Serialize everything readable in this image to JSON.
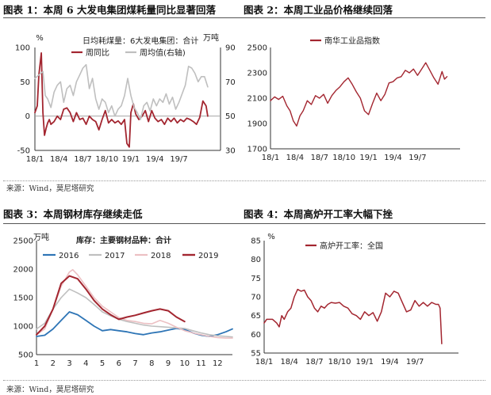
{
  "colors": {
    "maroon": "#a32630",
    "gray": "#bfbfbf",
    "blue": "#2e75b6",
    "axis": "#333333",
    "pink": "#ecc0c3"
  },
  "source_top": "来源：Wind，莫尼塔研究",
  "source_bottom": "来源：Wind，莫尼塔研究",
  "chart_data": [
    {
      "id": "c1",
      "title": "图表 1：本周 6 大发电集团煤耗量同比显著回落",
      "type": "line",
      "legend_title": "日均耗煤量：6大发电集团：合计",
      "left_unit": "%",
      "right_unit": "万吨",
      "ylim_left": [
        -50,
        100
      ],
      "yticks_left": [
        "100",
        "50",
        "0",
        "-50"
      ],
      "ylim_right": [
        30,
        90
      ],
      "yticks_right": [
        "90",
        "70",
        "50",
        "30"
      ],
      "xlim": [
        0,
        23.2
      ],
      "xticks": [
        {
          "pos": 0,
          "label": "18/1"
        },
        {
          "pos": 3,
          "label": "18/4"
        },
        {
          "pos": 6,
          "label": "18/7"
        },
        {
          "pos": 9,
          "label": "18/10"
        },
        {
          "pos": 12,
          "label": "19/1"
        },
        {
          "pos": 15,
          "label": "19/4"
        },
        {
          "pos": 18,
          "label": "19/7"
        }
      ],
      "series": [
        {
          "name": "周同比",
          "axis": "left",
          "color": "maroon",
          "width": 1.8,
          "x": [
            0,
            0.3,
            0.5,
            0.8,
            1.0,
            1.2,
            1.4,
            1.6,
            1.8,
            2.0,
            2.4,
            2.8,
            3.2,
            3.6,
            4.0,
            4.4,
            4.8,
            5.2,
            5.6,
            6.0,
            6.4,
            6.8,
            7.2,
            7.6,
            8.0,
            8.4,
            8.8,
            9.2,
            9.6,
            10.0,
            10.4,
            10.8,
            11.2,
            11.5,
            11.8,
            12.0,
            12.3,
            12.6,
            13.0,
            13.4,
            13.8,
            14.2,
            14.6,
            15.0,
            15.4,
            15.8,
            16.2,
            16.6,
            17.0,
            17.4,
            17.8,
            18.2,
            18.6,
            19.0,
            19.4,
            19.8,
            20.2,
            20.6,
            21.0,
            21.4,
            21.6
          ],
          "y": [
            5,
            15,
            60,
            92,
            5,
            -28,
            -18,
            -10,
            -5,
            -12,
            -8,
            0,
            -5,
            10,
            12,
            5,
            -8,
            5,
            -5,
            -3,
            -12,
            0,
            -5,
            -8,
            -20,
            -5,
            8,
            -10,
            -5,
            -10,
            -7,
            -12,
            -5,
            -40,
            -45,
            5,
            18,
            3,
            -5,
            0,
            8,
            -8,
            8,
            -3,
            -8,
            -5,
            -12,
            -3,
            -8,
            -3,
            -10,
            -5,
            -8,
            -3,
            -5,
            -8,
            -12,
            -2,
            22,
            15,
            0
          ]
        },
        {
          "name": "周均值(右轴)",
          "axis": "right",
          "color": "gray",
          "width": 1.6,
          "x": [
            0,
            0.5,
            1.0,
            1.3,
            1.6,
            2.0,
            2.4,
            2.8,
            3.2,
            3.6,
            4.0,
            4.4,
            4.8,
            5.2,
            5.6,
            6.0,
            6.4,
            6.8,
            7.2,
            7.6,
            8.0,
            8.4,
            8.8,
            9.2,
            9.6,
            10.0,
            10.4,
            10.8,
            11.2,
            11.6,
            12.0,
            12.4,
            12.8,
            13.2,
            13.6,
            14.0,
            14.4,
            14.8,
            15.2,
            15.6,
            16.0,
            16.4,
            16.8,
            17.2,
            17.6,
            18.0,
            18.4,
            18.8,
            19.2,
            19.6,
            20.0,
            20.4,
            20.8,
            21.2,
            21.6
          ],
          "y": [
            72,
            74,
            76,
            62,
            60,
            55,
            64,
            68,
            70,
            58,
            66,
            68,
            62,
            70,
            74,
            78,
            80,
            66,
            72,
            60,
            54,
            60,
            58,
            52,
            56,
            50,
            54,
            56,
            62,
            72,
            62,
            55,
            52,
            48,
            56,
            58,
            53,
            60,
            56,
            60,
            58,
            63,
            57,
            61,
            54,
            58,
            63,
            68,
            79,
            78,
            75,
            70,
            73,
            73,
            67
          ]
        }
      ]
    },
    {
      "id": "c2",
      "title": "图表 2：本周工业品价格继续回落",
      "type": "line",
      "ylim": [
        1700,
        2500
      ],
      "yticks": [
        "2500",
        "2300",
        "2100",
        "1900",
        "1700"
      ],
      "xlim": [
        0,
        23.2
      ],
      "xticks": [
        {
          "pos": 0,
          "label": "18/1"
        },
        {
          "pos": 3,
          "label": "18/4"
        },
        {
          "pos": 6,
          "label": "18/7"
        },
        {
          "pos": 9,
          "label": "18/10"
        },
        {
          "pos": 12,
          "label": "19/1"
        },
        {
          "pos": 15,
          "label": "19/4"
        },
        {
          "pos": 18,
          "label": "19/7"
        }
      ],
      "series": [
        {
          "name": "南华工业品指数",
          "color": "maroon",
          "width": 1.4,
          "x": [
            0,
            0.5,
            1.0,
            1.5,
            2.0,
            2.4,
            2.8,
            3.2,
            3.6,
            4.0,
            4.5,
            5.0,
            5.5,
            6.0,
            6.5,
            7.0,
            7.5,
            8.0,
            8.5,
            9.0,
            9.5,
            10.0,
            10.5,
            11.0,
            11.5,
            12.0,
            12.5,
            13.0,
            13.5,
            14.0,
            14.5,
            15.0,
            15.5,
            16.0,
            16.5,
            17.0,
            17.5,
            18.0,
            18.5,
            19.0,
            19.5,
            20.0,
            20.5,
            21.0,
            21.3,
            21.6
          ],
          "y": [
            2080,
            2110,
            2090,
            2115,
            2040,
            2000,
            1920,
            1880,
            1960,
            2000,
            2080,
            2050,
            2120,
            2100,
            2130,
            2060,
            2120,
            2160,
            2190,
            2230,
            2260,
            2210,
            2150,
            2100,
            2000,
            1970,
            2060,
            2140,
            2080,
            2130,
            2220,
            2230,
            2260,
            2270,
            2320,
            2300,
            2330,
            2280,
            2330,
            2380,
            2320,
            2260,
            2210,
            2310,
            2250,
            2270
          ]
        }
      ]
    },
    {
      "id": "c3",
      "title": "图表 3：本周钢材库存继续走低",
      "type": "line",
      "legend_title": "库存：主要钢材品种：合计",
      "unit": "万吨",
      "ylim": [
        500,
        2500
      ],
      "yticks": [
        "2500",
        "2000",
        "1500",
        "1000",
        "500"
      ],
      "xlim": [
        1,
        12.9
      ],
      "xticks": [
        {
          "pos": 1,
          "label": "1"
        },
        {
          "pos": 2,
          "label": "2"
        },
        {
          "pos": 3,
          "label": "3"
        },
        {
          "pos": 4,
          "label": "4"
        },
        {
          "pos": 5,
          "label": "5"
        },
        {
          "pos": 6,
          "label": "6"
        },
        {
          "pos": 7,
          "label": "7"
        },
        {
          "pos": 8,
          "label": "8"
        },
        {
          "pos": 9,
          "label": "9"
        },
        {
          "pos": 10,
          "label": "10"
        },
        {
          "pos": 11,
          "label": "11"
        },
        {
          "pos": 12,
          "label": "12"
        }
      ],
      "series": [
        {
          "name": "2016",
          "color": "blue",
          "width": 1.8,
          "x": [
            1,
            1.5,
            2,
            2.5,
            3,
            3.5,
            4,
            4.5,
            5,
            5.5,
            6,
            6.5,
            7,
            7.5,
            8,
            8.5,
            9,
            9.5,
            10,
            10.5,
            11,
            11.5,
            12,
            12.5,
            12.9
          ],
          "y": [
            820,
            840,
            950,
            1100,
            1250,
            1200,
            1100,
            1000,
            920,
            940,
            920,
            900,
            870,
            850,
            880,
            900,
            930,
            960,
            940,
            880,
            840,
            820,
            850,
            900,
            950
          ]
        },
        {
          "name": "2017",
          "color": "gray",
          "width": 1.6,
          "x": [
            1,
            1.5,
            2,
            2.5,
            3,
            3.5,
            4,
            4.5,
            5,
            5.5,
            6,
            6.5,
            7,
            7.5,
            8,
            8.5,
            9,
            9.5,
            10,
            10.5,
            11,
            11.5,
            12,
            12.5,
            12.9
          ],
          "y": [
            950,
            1050,
            1300,
            1500,
            1650,
            1580,
            1500,
            1380,
            1250,
            1180,
            1120,
            1080,
            1050,
            1020,
            1000,
            990,
            980,
            970,
            960,
            920,
            880,
            850,
            830,
            820,
            810
          ]
        },
        {
          "name": "2018",
          "color": "pink",
          "width": 1.6,
          "x": [
            1,
            1.5,
            2,
            2.5,
            3,
            3.2,
            3.5,
            4,
            4.5,
            5,
            5.5,
            6,
            6.5,
            7,
            7.5,
            8,
            8.5,
            9,
            9.5,
            10,
            10.5,
            11,
            11.5,
            12,
            12.5,
            12.9
          ],
          "y": [
            850,
            950,
            1300,
            1700,
            1950,
            1990,
            1900,
            1700,
            1500,
            1350,
            1250,
            1150,
            1100,
            1080,
            1050,
            1040,
            1100,
            1050,
            980,
            920,
            880,
            850,
            820,
            800,
            790,
            790
          ]
        },
        {
          "name": "2019",
          "color": "maroon",
          "width": 2.0,
          "x": [
            1,
            1.5,
            2,
            2.5,
            3,
            3.5,
            4,
            4.5,
            5,
            5.5,
            6,
            6.5,
            7,
            7.5,
            8,
            8.5,
            9,
            9.5,
            10
          ],
          "y": [
            850,
            1000,
            1300,
            1750,
            1880,
            1830,
            1650,
            1450,
            1300,
            1200,
            1120,
            1160,
            1190,
            1230,
            1270,
            1300,
            1270,
            1160,
            1080
          ]
        }
      ]
    },
    {
      "id": "c4",
      "title": "图表 4：本周高炉开工率大幅下挫",
      "type": "line",
      "unit": "%",
      "ylim": [
        55,
        85
      ],
      "yticks": [
        "85",
        "80",
        "75",
        "70",
        "65",
        "60",
        "55"
      ],
      "xlim": [
        0,
        23.2
      ],
      "xticks": [
        {
          "pos": 0,
          "label": "18/1"
        },
        {
          "pos": 3,
          "label": "18/4"
        },
        {
          "pos": 6,
          "label": "18/7"
        },
        {
          "pos": 9,
          "label": "18/10"
        },
        {
          "pos": 12,
          "label": "19/1"
        },
        {
          "pos": 15,
          "label": "19/4"
        },
        {
          "pos": 18,
          "label": "19/7"
        }
      ],
      "series": [
        {
          "name": "高炉开工率：全国",
          "color": "maroon",
          "width": 1.5,
          "x": [
            0,
            0.3,
            0.6,
            1.0,
            1.5,
            1.8,
            2.1,
            2.4,
            2.8,
            3.2,
            3.6,
            4.0,
            4.4,
            4.8,
            5.2,
            5.6,
            6.0,
            6.4,
            6.8,
            7.2,
            7.6,
            8.0,
            8.5,
            9.0,
            9.5,
            10.0,
            10.5,
            11.0,
            11.5,
            12.0,
            12.5,
            13.0,
            13.5,
            14.0,
            14.5,
            15.0,
            15.5,
            16.0,
            16.5,
            17.0,
            17.5,
            18.0,
            18.5,
            19.0,
            19.5,
            20.0,
            20.5,
            20.8,
            21.0,
            21.2
          ],
          "y": [
            63,
            64,
            64,
            64,
            63,
            62,
            65,
            64,
            66,
            67,
            70,
            72,
            71.5,
            71.8,
            70,
            69,
            67,
            66,
            67.5,
            67,
            68,
            68.5,
            68.3,
            68.5,
            67.5,
            67,
            65.5,
            65,
            64,
            66,
            65,
            65.8,
            63.5,
            66,
            71,
            70,
            71.5,
            71,
            68.5,
            66,
            66.5,
            69,
            67.5,
            68.5,
            67.5,
            68.5,
            68,
            68,
            67,
            57.5
          ]
        }
      ]
    }
  ]
}
